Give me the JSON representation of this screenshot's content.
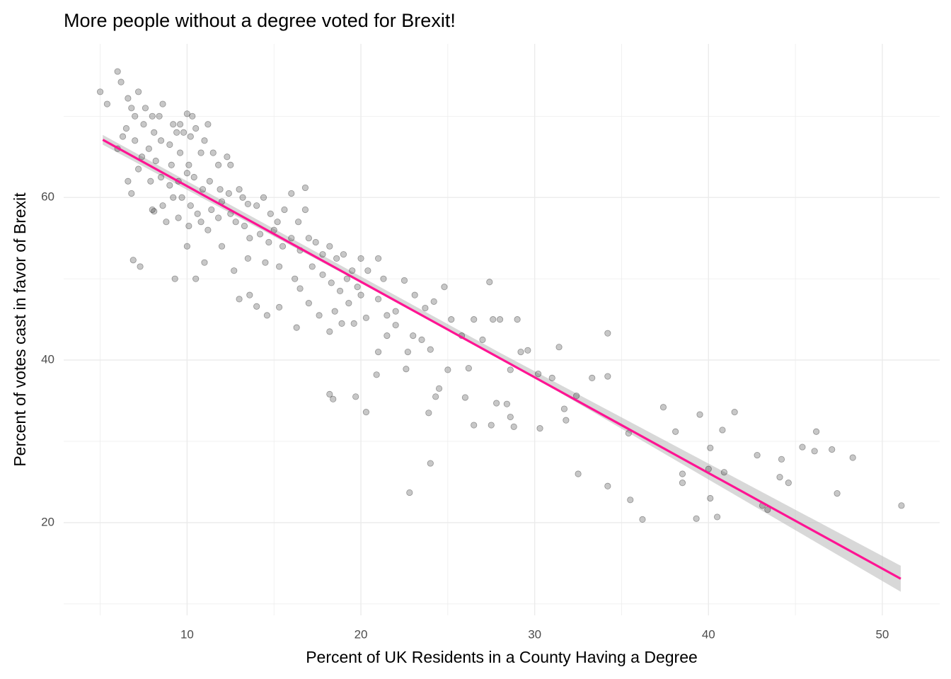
{
  "chart_data": {
    "type": "scatter",
    "title": "More people without a degree voted for Brexit!",
    "xlabel": "Percent of UK Residents in a County Having a Degree",
    "ylabel": "Percent of votes cast in favor of Brexit",
    "xlim": [
      2.9,
      53.3
    ],
    "ylim": [
      8.6,
      78.9
    ],
    "xticks": [
      10,
      20,
      30,
      40,
      50
    ],
    "yticks": [
      20,
      40,
      60
    ],
    "xminor": [
      5,
      15,
      25,
      35,
      45
    ],
    "yminor": [
      10,
      30,
      50,
      70
    ],
    "grid": true,
    "color": "#000000",
    "x": [
      5.0,
      6.0,
      5.4,
      6.2,
      6.6,
      7.2,
      6.8,
      7.0,
      7.6,
      8.0,
      7.5,
      6.5,
      6.3,
      7.0,
      6.0,
      8.4,
      8.6,
      9.2,
      9.6,
      10.0,
      10.3,
      11.2,
      10.5,
      8.1,
      8.5,
      9.0,
      9.4,
      9.8,
      10.2,
      11.0,
      7.8,
      7.4,
      8.2,
      9.1,
      9.6,
      10.1,
      10.8,
      11.5,
      12.3,
      12.5,
      11.8,
      7.2,
      7.9,
      8.5,
      9.0,
      9.5,
      10.0,
      10.4,
      10.9,
      11.3,
      11.9,
      12.4,
      13.0,
      13.2,
      13.5,
      12.0,
      11.4,
      10.6,
      10.2,
      9.7,
      9.2,
      8.6,
      8.0,
      8.8,
      9.5,
      10.1,
      10.8,
      11.2,
      11.8,
      12.5,
      12.8,
      13.3,
      14.0,
      14.4,
      14.8,
      15.2,
      15.6,
      16.0,
      16.4,
      16.8,
      16.8,
      13.6,
      14.2,
      14.7,
      15.0,
      15.5,
      16.0,
      16.5,
      17.0,
      17.4,
      17.8,
      18.2,
      18.6,
      19.0,
      19.5,
      20.0,
      10.0,
      11.0,
      12.0,
      12.7,
      13.5,
      14.5,
      15.3,
      16.2,
      16.5,
      17.2,
      17.8,
      18.3,
      18.8,
      19.2,
      19.8,
      20.4,
      21.0,
      21.3,
      6.8,
      6.6,
      8.1,
      6.9,
      7.3,
      9.3,
      10.5,
      13.0,
      13.6,
      14.0,
      14.6,
      15.3,
      16.3,
      17.0,
      17.6,
      18.2,
      18.5,
      18.9,
      19.3,
      19.6,
      20.0,
      20.3,
      21.0,
      21.5,
      22.0,
      22.5,
      23.1,
      23.7,
      24.2,
      24.8,
      25.2,
      23.0,
      22.7,
      22.6,
      21.0,
      20.9,
      19.7,
      20.3,
      18.2,
      18.4,
      21.5,
      22.0,
      23.5,
      24.0,
      24.5,
      24.3,
      25.0,
      23.9,
      24.0,
      22.8,
      25.8,
      26.2,
      26.5,
      26.0,
      26.5,
      27.0,
      27.4,
      27.6,
      28.0,
      27.8,
      28.4,
      28.6,
      27.5,
      28.8,
      28.6,
      29.0,
      29.2,
      29.6,
      30.2,
      30.3,
      31.0,
      31.4,
      31.7,
      31.8,
      32.5,
      32.4,
      33.3,
      34.2,
      34.2,
      34.2,
      35.4,
      35.5,
      36.2,
      37.4,
      38.1,
      38.5,
      38.5,
      39.5,
      39.3,
      40.1,
      40.0,
      40.1,
      40.5,
      40.8,
      40.9,
      41.5,
      42.8,
      43.1,
      43.4,
      44.2,
      44.1,
      44.6,
      45.4,
      46.2,
      46.1,
      47.1,
      47.4,
      48.3,
      51.1
    ],
    "values": [
      73,
      75.5,
      71.5,
      74.2,
      72.2,
      73,
      71,
      70,
      71,
      70,
      69,
      68.5,
      67.5,
      67,
      66,
      70,
      71.5,
      69,
      69,
      70.3,
      70,
      69,
      68.5,
      68,
      67,
      66.5,
      68,
      68,
      67.5,
      67,
      66,
      65,
      64.5,
      64,
      65.5,
      64,
      65.5,
      65.5,
      65,
      64,
      64,
      63.5,
      62,
      62.5,
      61.5,
      62,
      63,
      62.5,
      61,
      62,
      61,
      60.5,
      61,
      60,
      59.2,
      59.5,
      58.5,
      58,
      59,
      60,
      60,
      59,
      58.5,
      57,
      57.5,
      56.5,
      57,
      56,
      57.5,
      58,
      57,
      56.5,
      59,
      60,
      58,
      57,
      58.5,
      60.5,
      57,
      58.5,
      61.2,
      55,
      55.5,
      54.5,
      56,
      54,
      55,
      53.5,
      55,
      54.5,
      53,
      54,
      52.5,
      53,
      51,
      52.5,
      54,
      52,
      54,
      51,
      52.5,
      52,
      51.5,
      50,
      48.8,
      51.5,
      50.5,
      49.5,
      48.5,
      50,
      49,
      51,
      52.5,
      50,
      60.5,
      62,
      58.3,
      52.3,
      51.5,
      50,
      50,
      47.5,
      48,
      46.6,
      45.5,
      46.5,
      44,
      47,
      45.5,
      43.5,
      46,
      44.5,
      47,
      44.5,
      48,
      45.2,
      47.5,
      45.5,
      46,
      49.8,
      48,
      46.4,
      47.2,
      49,
      45,
      43,
      41,
      38.9,
      41,
      38.2,
      35.5,
      33.6,
      35.8,
      35.2,
      43,
      44.3,
      42.5,
      41.3,
      36.5,
      35.5,
      38.8,
      33.5,
      27.3,
      23.7,
      43,
      39,
      45,
      35.4,
      32,
      42.5,
      49.6,
      45,
      45,
      34.7,
      34.6,
      33,
      32,
      31.8,
      38.8,
      45,
      41,
      41.2,
      38.3,
      31.6,
      37.8,
      41.6,
      34,
      32.6,
      26,
      35.6,
      37.8,
      43.3,
      38,
      24.5,
      31,
      22.8,
      20.4,
      34.2,
      31.2,
      26,
      24.9,
      33.3,
      20.5,
      29.2,
      26.6,
      23,
      20.7,
      31.4,
      26.2,
      33.6,
      28.3,
      22.1,
      21.6,
      27.8,
      25.6,
      24.9,
      29.3,
      31.2,
      28.8,
      29,
      23.6,
      28,
      22.1
    ],
    "fit": {
      "x": [
        5.15,
        51.06
      ],
      "y": [
        67.1,
        13.1
      ],
      "color": "#ff1493"
    },
    "band": {
      "x": [
        5.15,
        28,
        51.06
      ],
      "lower": [
        66.5,
        40.3,
        11.5
      ],
      "upper": [
        67.7,
        40.9,
        14.7
      ],
      "color": "#bebebe"
    }
  }
}
